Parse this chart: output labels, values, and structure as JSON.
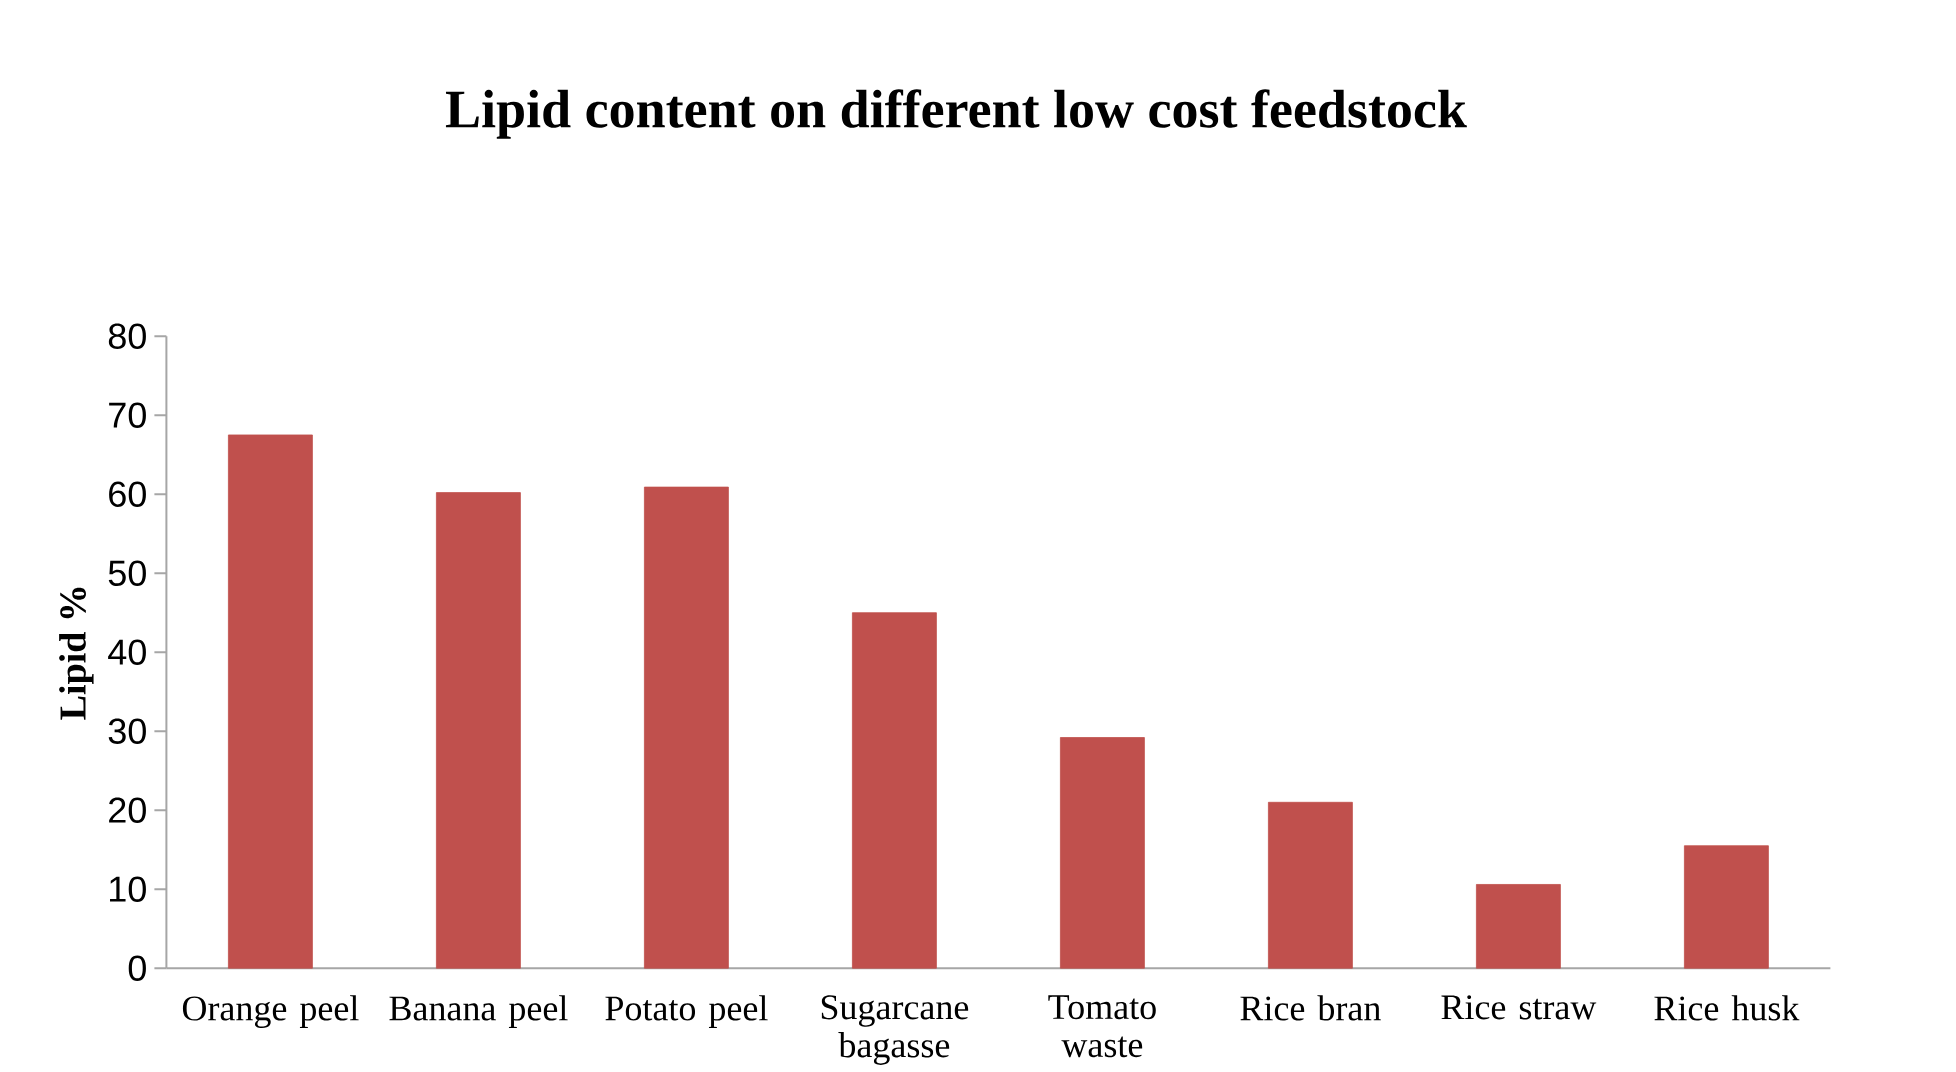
{
  "chart_data": {
    "type": "bar",
    "title": "Lipid content on different low cost feedstock",
    "ylabel": "Lipid %",
    "categories": [
      "Orange peel",
      "Banana peel",
      "Potato peel",
      "Sugarcane bagasse",
      "Tomato waste",
      "Rice bran",
      "Rice straw",
      "Rice husk"
    ],
    "values": [
      67.5,
      60.2,
      60.9,
      45.0,
      29.2,
      21.0,
      10.6,
      15.5
    ],
    "color": "#c0504d",
    "ylim": [
      0,
      80
    ],
    "yticks": [
      0,
      10,
      20,
      30,
      40,
      50,
      60,
      70,
      80
    ],
    "grid": false
  }
}
